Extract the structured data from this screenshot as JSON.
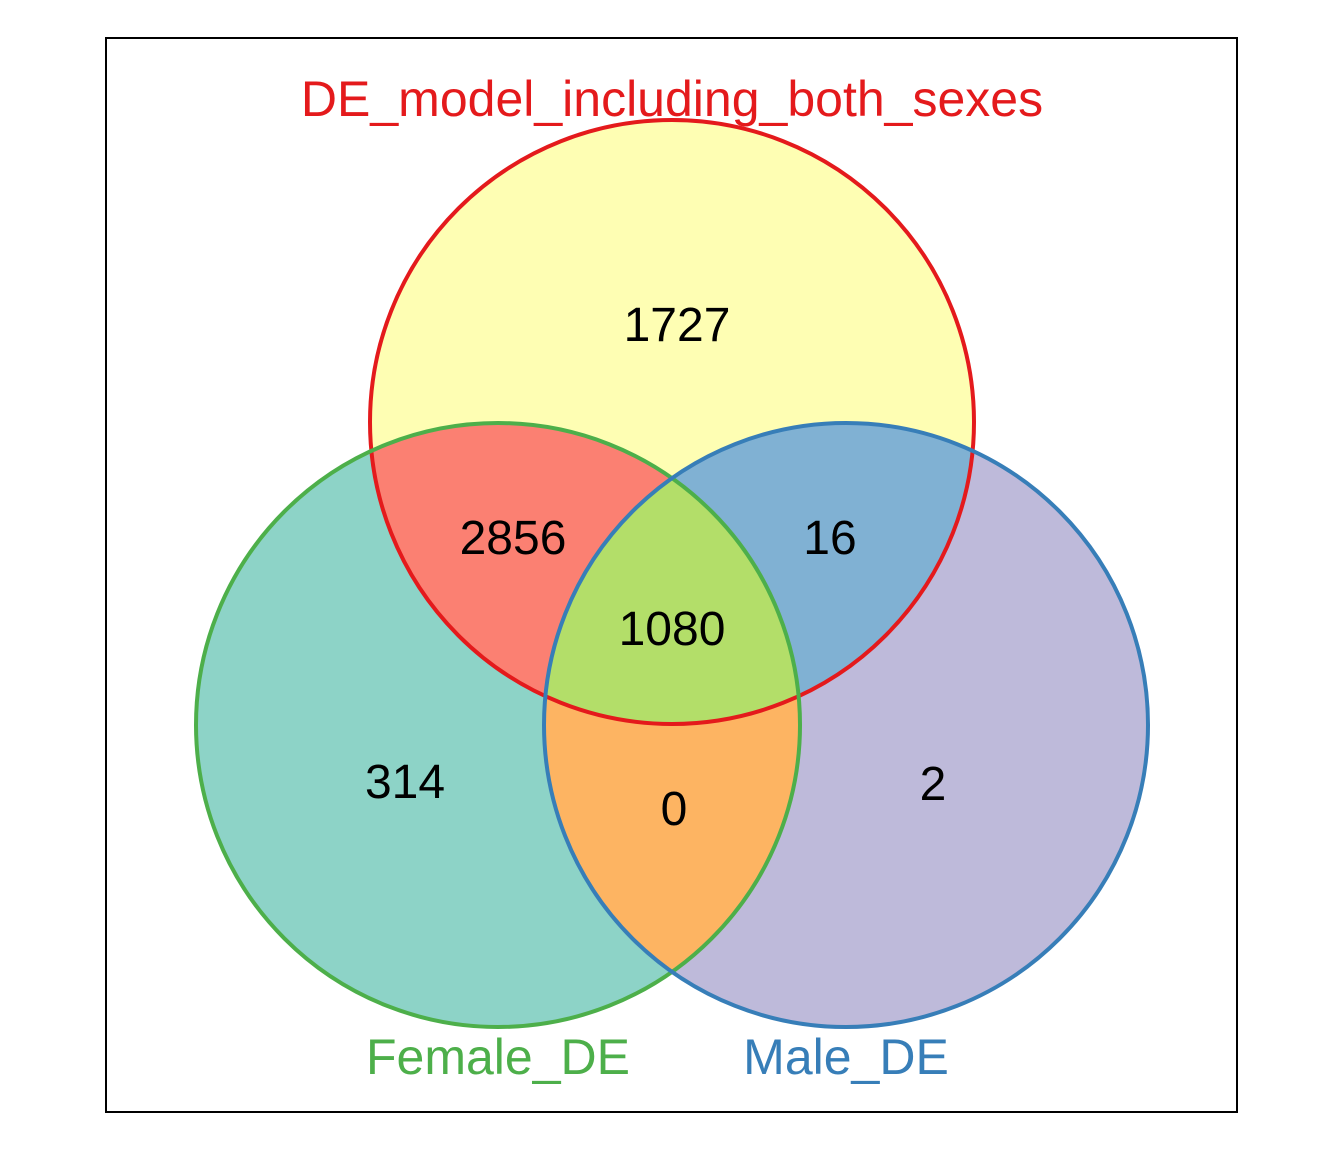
{
  "sets": {
    "top": {
      "label": "DE_model_including_both_sexes",
      "color": "#e41a1c"
    },
    "left": {
      "label": "Female_DE",
      "color": "#4daf4a"
    },
    "right": {
      "label": "Male_DE",
      "color": "#377eb8"
    }
  },
  "region_colors": {
    "top_only": "#fefeb3",
    "left_only": "#8dd3c7",
    "right_only": "#bebada",
    "top_left": "#fb8072",
    "top_right": "#80b1d3",
    "left_right": "#fdb462",
    "all_three": "#b3de69"
  },
  "counts": {
    "top_only": "1727",
    "top_left": "2856",
    "top_right": "16",
    "all_three": "1080",
    "left_only": "314",
    "left_right": "0",
    "right_only": "2"
  }
}
